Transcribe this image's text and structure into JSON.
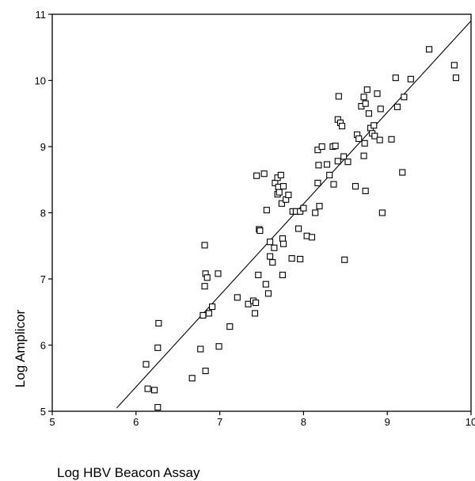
{
  "chart_data": {
    "type": "scatter",
    "title": "",
    "xlabel": "Log HBV Beacon Assay",
    "ylabel": "Log Amplicor",
    "xlim": [
      5,
      10
    ],
    "ylim": [
      5,
      11
    ],
    "xticks": [
      "5",
      "6",
      "7",
      "8",
      "9",
      "10"
    ],
    "yticks": [
      "5",
      "6",
      "7",
      "8",
      "9",
      "10",
      "11"
    ],
    "grid": false,
    "legend": "none",
    "marker": "open-square",
    "color": "#000000",
    "series": [
      {
        "points": [
          [
            6.12,
            5.71
          ],
          [
            6.14,
            5.34
          ],
          [
            6.22,
            5.32
          ],
          [
            6.26,
            5.06
          ],
          [
            6.26,
            5.96
          ],
          [
            6.27,
            6.33
          ],
          [
            6.67,
            5.5
          ],
          [
            6.77,
            5.94
          ],
          [
            6.8,
            6.45
          ],
          [
            6.82,
            7.51
          ],
          [
            6.82,
            6.89
          ],
          [
            6.83,
            7.08
          ],
          [
            6.83,
            5.61
          ],
          [
            6.85,
            7.02
          ],
          [
            6.87,
            6.48
          ],
          [
            6.91,
            6.58
          ],
          [
            6.98,
            7.08
          ],
          [
            6.99,
            5.98
          ],
          [
            7.12,
            6.28
          ],
          [
            7.21,
            6.72
          ],
          [
            7.34,
            6.62
          ],
          [
            7.4,
            6.67
          ],
          [
            7.42,
            6.48
          ],
          [
            7.43,
            6.64
          ],
          [
            7.44,
            8.56
          ],
          [
            7.46,
            7.06
          ],
          [
            7.47,
            7.75
          ],
          [
            7.48,
            7.73
          ],
          [
            7.53,
            8.59
          ],
          [
            7.55,
            6.92
          ],
          [
            7.56,
            8.04
          ],
          [
            7.58,
            6.78
          ],
          [
            7.6,
            7.56
          ],
          [
            7.6,
            7.34
          ],
          [
            7.63,
            7.25
          ],
          [
            7.65,
            7.47
          ],
          [
            7.66,
            8.45
          ],
          [
            7.69,
            8.53
          ],
          [
            7.69,
            8.28
          ],
          [
            7.7,
            8.39
          ],
          [
            7.71,
            8.31
          ],
          [
            7.73,
            8.57
          ],
          [
            7.74,
            8.14
          ],
          [
            7.75,
            7.06
          ],
          [
            7.75,
            7.61
          ],
          [
            7.76,
            7.53
          ],
          [
            7.76,
            8.4
          ],
          [
            7.79,
            8.2
          ],
          [
            7.82,
            8.27
          ],
          [
            7.86,
            7.31
          ],
          [
            7.87,
            8.02
          ],
          [
            7.91,
            8.02
          ],
          [
            7.94,
            7.76
          ],
          [
            7.96,
            7.3
          ],
          [
            7.96,
            8.02
          ],
          [
            8.0,
            8.07
          ],
          [
            8.04,
            7.65
          ],
          [
            8.1,
            7.63
          ],
          [
            8.14,
            8.0
          ],
          [
            8.17,
            8.95
          ],
          [
            8.17,
            8.45
          ],
          [
            8.18,
            8.72
          ],
          [
            8.19,
            8.1
          ],
          [
            8.22,
            9.0
          ],
          [
            8.28,
            8.73
          ],
          [
            8.31,
            8.57
          ],
          [
            8.35,
            9.0
          ],
          [
            8.36,
            8.43
          ],
          [
            8.38,
            9.01
          ],
          [
            8.41,
            9.41
          ],
          [
            8.41,
            8.78
          ],
          [
            8.42,
            9.76
          ],
          [
            8.44,
            9.36
          ],
          [
            8.46,
            9.31
          ],
          [
            8.48,
            8.85
          ],
          [
            8.49,
            7.29
          ],
          [
            8.53,
            8.77
          ],
          [
            8.62,
            8.4
          ],
          [
            8.64,
            9.18
          ],
          [
            8.66,
            9.12
          ],
          [
            8.69,
            9.61
          ],
          [
            8.72,
            9.75
          ],
          [
            8.72,
            8.86
          ],
          [
            8.73,
            9.05
          ],
          [
            8.74,
            9.65
          ],
          [
            8.74,
            8.33
          ],
          [
            8.76,
            9.86
          ],
          [
            8.78,
            9.5
          ],
          [
            8.8,
            9.28
          ],
          [
            8.82,
            9.2
          ],
          [
            8.84,
            9.32
          ],
          [
            8.85,
            9.16
          ],
          [
            8.88,
            9.8
          ],
          [
            8.91,
            9.1
          ],
          [
            8.92,
            9.57
          ],
          [
            8.94,
            8.0
          ],
          [
            9.05,
            9.11
          ],
          [
            9.1,
            10.04
          ],
          [
            9.12,
            9.6
          ],
          [
            9.18,
            8.61
          ],
          [
            9.2,
            9.75
          ],
          [
            9.28,
            10.02
          ],
          [
            9.5,
            10.47
          ],
          [
            9.8,
            10.23
          ],
          [
            9.82,
            10.04
          ]
        ]
      }
    ],
    "fit_line": {
      "x": [
        5.77,
        10.0
      ],
      "y": [
        5.05,
        10.9
      ]
    }
  }
}
